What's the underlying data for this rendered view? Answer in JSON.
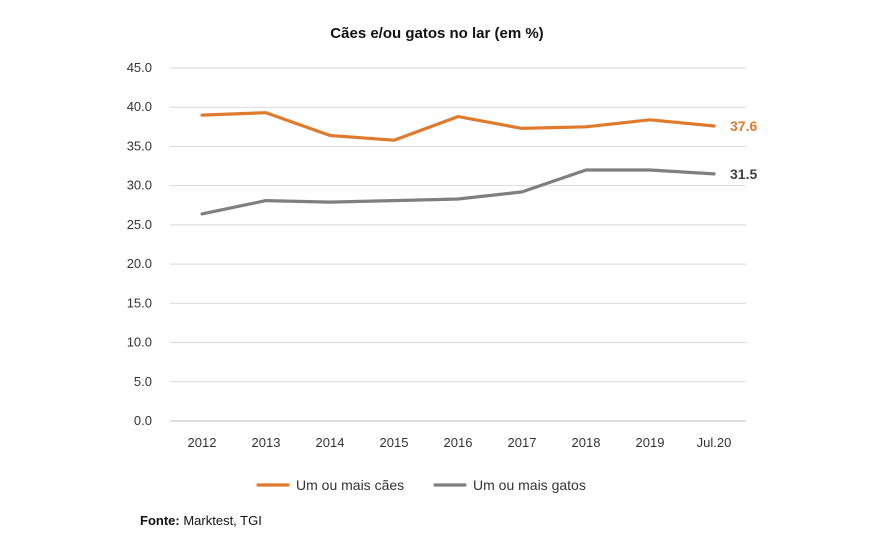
{
  "chart_data": {
    "type": "line",
    "title": "Cães e/ou gatos no lar (em %)",
    "xlabel": "",
    "ylabel": "",
    "categories": [
      "2012",
      "2013",
      "2014",
      "2015",
      "2016",
      "2017",
      "2018",
      "2019",
      "Jul.20"
    ],
    "yticks": [
      "0.0",
      "5.0",
      "10.0",
      "15.0",
      "20.0",
      "25.0",
      "30.0",
      "35.0",
      "40.0",
      "45.0"
    ],
    "ylim": [
      0,
      45
    ],
    "grid": true,
    "legend_position": "bottom",
    "series": [
      {
        "name": "Um ou mais cães",
        "color": "#E07B2E",
        "values": [
          39.0,
          39.3,
          36.4,
          35.8,
          38.8,
          37.3,
          37.5,
          38.4,
          37.6
        ],
        "end_label": "37.6"
      },
      {
        "name": "Um ou mais gatos",
        "color": "#7F7F7F",
        "values": [
          26.4,
          28.1,
          27.9,
          28.1,
          28.3,
          29.2,
          32.0,
          32.0,
          31.5
        ],
        "end_label": "31.5"
      }
    ]
  },
  "source": {
    "label": "Fonte:",
    "text": "Marktest, TGI"
  }
}
